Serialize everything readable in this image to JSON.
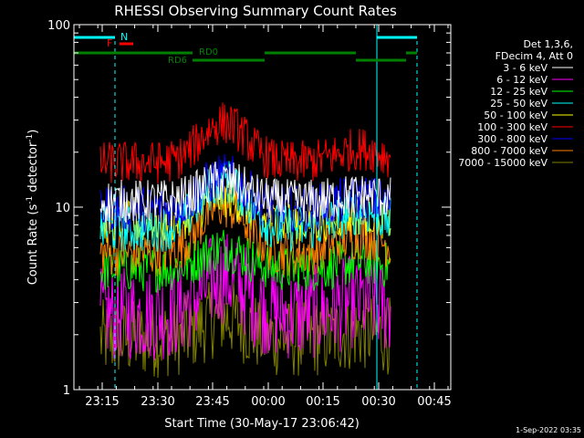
{
  "chart_data": {
    "type": "line",
    "title": "RHESSI Observing Summary Count Rates",
    "xlabel": "Start Time (30-May-17 23:06:42)",
    "ylabel_main": "Count Rate (s",
    "ylabel_sup": "-1",
    "ylabel_rest": " detector",
    "ylabel_end": ")",
    "yscale": "log",
    "ylim": [
      1,
      100
    ],
    "y_ticks": [
      {
        "value": 1,
        "label": "1"
      },
      {
        "value": 10,
        "label": "10"
      },
      {
        "value": 100,
        "label": "100"
      }
    ],
    "x_ticks": [
      "23:15",
      "23:30",
      "23:45",
      "00:00",
      "00:15",
      "00:30",
      "00:45"
    ],
    "legend_header": [
      "Det 1,3,6,",
      "FDecim 4, Att 0"
    ],
    "series": [
      {
        "name": "3 - 6 keV",
        "color": "#ffffff",
        "base": 10.8,
        "peak": 14.5,
        "noise": 0.55
      },
      {
        "name": "6 - 12 keV",
        "color": "#ff00ff",
        "base": 2.6,
        "peak": 4.4,
        "noise": 1.2
      },
      {
        "name": "12 - 25 keV",
        "color": "#00ff00",
        "base": 4.6,
        "peak": 6.2,
        "noise": 0.6
      },
      {
        "name": "25 - 50 keV",
        "color": "#00ffff",
        "base": 7.6,
        "peak": 15.0,
        "noise": 0.6
      },
      {
        "name": "50 - 100 keV",
        "color": "#ffff00",
        "base": 8.2,
        "peak": 12.0,
        "noise": 0.55
      },
      {
        "name": "100 - 300 keV",
        "color": "#ff0000",
        "base": 17.5,
        "peak": 31.0,
        "noise": 0.55
      },
      {
        "name": "300 - 800 keV",
        "color": "#0000ff",
        "base": 9.8,
        "peak": 15.5,
        "noise": 0.6
      },
      {
        "name": "800 - 7000 keV",
        "color": "#ff8000",
        "base": 5.6,
        "peak": 11.0,
        "noise": 0.6
      },
      {
        "name": "7000 - 15000 keV",
        "color": "#808000",
        "base": 1.9,
        "peak": 2.6,
        "noise": 1.0
      }
    ],
    "annotations": [
      {
        "label": "N",
        "color": "#00ffff"
      },
      {
        "label": "F",
        "color": "#ff0000"
      },
      {
        "label": "RD0",
        "color": "#008000"
      },
      {
        "label": "RD6",
        "color": "#008000"
      }
    ],
    "timestamp": "1-Sep-2022 03:35"
  }
}
